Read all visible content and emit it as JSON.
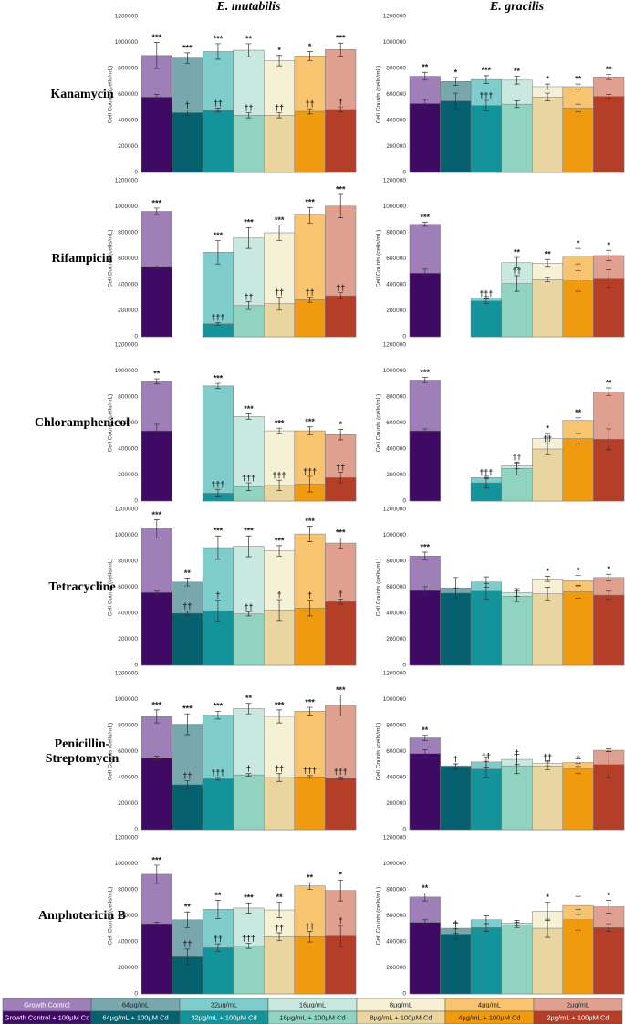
{
  "column_titles": [
    "E. mutabilis",
    "E. gracilis"
  ],
  "row_titles": [
    "Kanamycin",
    "Rifampicin",
    "Chloramphenicol",
    "Tetracycline",
    "Penicillin-Streptomycin",
    "Amphotericin B"
  ],
  "legend": {
    "labels": [
      [
        "Growth Control",
        "64µg/mL",
        "32µg/mL",
        "16µg/mL",
        "8µg/mL",
        "4µg/mL",
        "2µg/mL"
      ],
      [
        "Growth Control + 100µM Cd",
        "64µg/mL + 100µM Cd",
        "32µg/mL + 100µM Cd",
        "16µg/mL + 100µM Cd",
        "8µg/mL + 100µM Cd",
        "4µg/mL + 100µM Cd",
        "2µg/mL + 100µM Cd"
      ]
    ],
    "colors": [
      [
        "#9f7fb8",
        "#78a7ae",
        "#7fcccc",
        "#c9e8df",
        "#f6f0d4",
        "#f9c46f",
        "#dfa090"
      ],
      [
        "#3f0a64",
        "#06606e",
        "#14939a",
        "#8fd3c0",
        "#e8d5a0",
        "#f09a10",
        "#b43e28"
      ]
    ]
  },
  "chart_data": [
    {
      "type": "bar",
      "ylabel": "Cell Counts (cells/mL)",
      "ylim": [
        0,
        1200000
      ],
      "yticks": [
        0,
        200000,
        400000,
        600000,
        800000,
        1000000,
        1200000
      ],
      "series": [
        {
          "values": [
            900000,
            880000,
            930000,
            940000,
            860000,
            895000,
            945000
          ],
          "errors": [
            100000,
            40000,
            60000,
            50000,
            40000,
            35000,
            50000
          ],
          "annotations": [
            "***",
            "***",
            "***",
            "**",
            "*",
            "*",
            "***"
          ]
        },
        {
          "values": [
            580000,
            460000,
            480000,
            440000,
            440000,
            470000,
            485000
          ],
          "errors": [
            20000,
            20000,
            15000,
            20000,
            20000,
            20000,
            20000
          ],
          "annotations": [
            null,
            "†",
            "††",
            "††",
            "††",
            "††",
            "†"
          ]
        }
      ]
    },
    {
      "type": "bar",
      "ylabel": "Cell Counts (cells/mL)",
      "ylim": [
        0,
        1200000
      ],
      "yticks": [
        0,
        200000,
        400000,
        600000,
        800000,
        1000000,
        1200000
      ],
      "series": [
        {
          "values": [
            740000,
            700000,
            715000,
            710000,
            660000,
            660000,
            735000
          ],
          "errors": [
            30000,
            30000,
            30000,
            30000,
            20000,
            20000,
            20000
          ],
          "annotations": [
            "**",
            "*",
            "***",
            "**",
            "*",
            "**",
            "**"
          ]
        },
        {
          "values": [
            530000,
            550000,
            515000,
            525000,
            580000,
            495000,
            585000
          ],
          "errors": [
            30000,
            60000,
            40000,
            25000,
            30000,
            30000,
            15000
          ],
          "annotations": [
            null,
            null,
            "†††",
            null,
            null,
            null,
            null
          ]
        }
      ]
    },
    {
      "type": "bar",
      "ylabel": "Cell Counts (cells/mL)",
      "ylim": [
        0,
        1200000
      ],
      "yticks": [
        0,
        200000,
        400000,
        600000,
        800000,
        1000000,
        1200000
      ],
      "series": [
        {
          "values": [
            965000,
            null,
            650000,
            760000,
            800000,
            935000,
            1005000
          ],
          "errors": [
            25000,
            null,
            90000,
            80000,
            60000,
            60000,
            90000
          ],
          "annotations": [
            "***",
            null,
            "***",
            "***",
            "***",
            "***",
            "***"
          ]
        },
        {
          "values": [
            535000,
            null,
            100000,
            240000,
            255000,
            285000,
            315000
          ],
          "errors": [
            10000,
            null,
            10000,
            30000,
            50000,
            20000,
            25000
          ],
          "annotations": [
            null,
            null,
            "†††",
            "††",
            "††",
            "††",
            "††"
          ]
        }
      ]
    },
    {
      "type": "bar",
      "ylabel": "Cell Counts (cells/mL)",
      "ylim": [
        0,
        1200000
      ],
      "yticks": [
        0,
        200000,
        400000,
        600000,
        800000,
        1000000,
        1200000
      ],
      "series": [
        {
          "values": [
            865000,
            null,
            300000,
            570000,
            565000,
            620000,
            625000
          ],
          "errors": [
            15000,
            null,
            10000,
            40000,
            30000,
            60000,
            40000
          ],
          "annotations": [
            "***",
            null,
            null,
            "**",
            "**",
            "*",
            "*"
          ]
        },
        {
          "values": [
            490000,
            null,
            275000,
            410000,
            440000,
            430000,
            445000
          ],
          "errors": [
            30000,
            null,
            20000,
            60000,
            15000,
            80000,
            70000
          ],
          "annotations": [
            null,
            null,
            "†††",
            "††",
            null,
            null,
            null
          ]
        }
      ]
    },
    {
      "type": "bar",
      "ylabel": "Cell Counts (cells/mL)",
      "ylim": [
        0,
        1200000
      ],
      "yticks": [
        0,
        200000,
        400000,
        600000,
        800000,
        1000000,
        1200000
      ],
      "series": [
        {
          "values": [
            920000,
            null,
            885000,
            650000,
            540000,
            540000,
            510000
          ],
          "errors": [
            20000,
            null,
            20000,
            20000,
            20000,
            30000,
            40000
          ],
          "annotations": [
            "**",
            null,
            "***",
            "***",
            "***",
            "***",
            "*"
          ]
        },
        {
          "values": [
            540000,
            null,
            60000,
            110000,
            120000,
            130000,
            180000
          ],
          "errors": [
            50000,
            null,
            30000,
            30000,
            40000,
            60000,
            40000
          ],
          "annotations": [
            null,
            null,
            "†††",
            "†††",
            "†††",
            "†††",
            "††"
          ]
        }
      ]
    },
    {
      "type": "bar",
      "ylabel": "Cell Counts (cells/mL)",
      "ylim": [
        0,
        1200000
      ],
      "yticks": [
        0,
        200000,
        400000,
        600000,
        800000,
        1000000,
        1200000
      ],
      "series": [
        {
          "values": [
            930000,
            null,
            180000,
            270000,
            480000,
            620000,
            840000
          ],
          "errors": [
            20000,
            null,
            10000,
            20000,
            40000,
            20000,
            30000
          ],
          "annotations": [
            "***",
            null,
            null,
            null,
            "*",
            "**",
            "**"
          ]
        },
        {
          "values": [
            540000,
            null,
            140000,
            250000,
            400000,
            480000,
            475000
          ],
          "errors": [
            15000,
            null,
            40000,
            50000,
            40000,
            40000,
            80000
          ],
          "annotations": [
            null,
            null,
            "†††",
            "††",
            "††",
            null,
            null
          ]
        }
      ]
    },
    {
      "type": "bar",
      "ylabel": "Cell Counts (cells/mL)",
      "ylim": [
        0,
        1200000
      ],
      "yticks": [
        0,
        200000,
        400000,
        600000,
        800000,
        1000000,
        1200000
      ],
      "series": [
        {
          "values": [
            1050000,
            640000,
            905000,
            915000,
            880000,
            1010000,
            940000
          ],
          "errors": [
            70000,
            30000,
            90000,
            80000,
            40000,
            60000,
            40000
          ],
          "annotations": [
            "***",
            "**",
            "***",
            "***",
            "***",
            "***",
            "***"
          ]
        },
        {
          "values": [
            560000,
            400000,
            420000,
            395000,
            425000,
            440000,
            490000
          ],
          "errors": [
            10000,
            15000,
            80000,
            15000,
            80000,
            60000,
            20000
          ],
          "annotations": [
            null,
            "††",
            "†",
            "††",
            "†",
            "†",
            "†"
          ]
        }
      ]
    },
    {
      "type": "bar",
      "ylabel": "Cell Counts (cells/mL)",
      "ylim": [
        0,
        1200000
      ],
      "yticks": [
        0,
        200000,
        400000,
        600000,
        800000,
        1000000,
        1200000
      ],
      "series": [
        {
          "values": [
            840000,
            595000,
            640000,
            560000,
            665000,
            650000,
            675000
          ],
          "errors": [
            30000,
            80000,
            40000,
            30000,
            20000,
            40000,
            25000
          ],
          "annotations": [
            "***",
            null,
            null,
            null,
            "*",
            "*",
            "*"
          ]
        },
        {
          "values": [
            575000,
            555000,
            570000,
            530000,
            550000,
            565000,
            540000
          ],
          "errors": [
            30000,
            40000,
            60000,
            40000,
            50000,
            50000,
            30000
          ],
          "annotations": [
            null,
            null,
            null,
            null,
            null,
            null,
            null
          ]
        }
      ]
    },
    {
      "type": "bar",
      "ylabel": "Cell Counts (cells/mL)",
      "ylim": [
        0,
        1200000
      ],
      "yticks": [
        0,
        200000,
        400000,
        600000,
        800000,
        1000000,
        1200000
      ],
      "series": [
        {
          "values": [
            870000,
            810000,
            880000,
            930000,
            870000,
            910000,
            955000
          ],
          "errors": [
            50000,
            80000,
            30000,
            40000,
            50000,
            30000,
            80000
          ],
          "annotations": [
            "***",
            "***",
            "***",
            "**",
            "***",
            "***",
            "***"
          ]
        },
        {
          "values": [
            550000,
            345000,
            390000,
            420000,
            400000,
            405000,
            395000
          ],
          "errors": [
            15000,
            30000,
            10000,
            10000,
            30000,
            10000,
            10000
          ],
          "annotations": [
            null,
            "††",
            "†††",
            "†",
            "††",
            "†††",
            "†††"
          ]
        }
      ]
    },
    {
      "type": "bar",
      "ylabel": "Cell Counts (cells/mL)",
      "ylim": [
        0,
        1200000
      ],
      "yticks": [
        0,
        200000,
        400000,
        600000,
        800000,
        1000000,
        1200000
      ],
      "series": [
        {
          "values": [
            705000,
            490000,
            520000,
            540000,
            510000,
            515000,
            610000
          ],
          "errors": [
            20000,
            15000,
            40000,
            40000,
            20000,
            30000,
            10000
          ],
          "annotations": [
            "**",
            null,
            null,
            null,
            null,
            null,
            null
          ]
        },
        {
          "values": [
            585000,
            485000,
            465000,
            490000,
            490000,
            470000,
            500000
          ],
          "errors": [
            30000,
            20000,
            60000,
            60000,
            30000,
            40000,
            100000
          ],
          "annotations": [
            null,
            "†",
            "††",
            "†",
            "††",
            "†",
            null
          ]
        }
      ]
    },
    {
      "type": "bar",
      "ylabel": "Cell Counts (cells/mL)",
      "ylim": [
        0,
        1200000
      ],
      "yticks": [
        0,
        200000,
        400000,
        600000,
        800000,
        1000000,
        1200000
      ],
      "series": [
        {
          "values": [
            920000,
            570000,
            650000,
            660000,
            645000,
            830000,
            795000
          ],
          "errors": [
            70000,
            60000,
            70000,
            40000,
            60000,
            25000,
            80000
          ],
          "annotations": [
            "***",
            "**",
            "**",
            "***",
            "**",
            "**",
            "*"
          ]
        },
        {
          "values": [
            540000,
            285000,
            355000,
            370000,
            440000,
            440000,
            445000
          ],
          "errors": [
            10000,
            60000,
            30000,
            20000,
            30000,
            40000,
            80000
          ],
          "annotations": [
            null,
            "††",
            "††",
            "†††",
            "††",
            "††",
            "†"
          ]
        }
      ]
    },
    {
      "type": "bar",
      "ylabel": "Cell Counts (cells/mL)",
      "ylim": [
        0,
        1200000
      ],
      "yticks": [
        0,
        200000,
        400000,
        600000,
        800000,
        1000000,
        1200000
      ],
      "series": [
        {
          "values": [
            745000,
            505000,
            570000,
            545000,
            635000,
            680000,
            670000
          ],
          "errors": [
            30000,
            40000,
            30000,
            20000,
            70000,
            70000,
            50000
          ],
          "annotations": [
            "**",
            null,
            null,
            null,
            "*",
            null,
            "*"
          ]
        },
        {
          "values": [
            550000,
            460000,
            510000,
            530000,
            505000,
            570000,
            510000
          ],
          "errors": [
            20000,
            40000,
            30000,
            20000,
            70000,
            80000,
            30000
          ],
          "annotations": [
            null,
            "†",
            null,
            null,
            null,
            null,
            null
          ]
        }
      ]
    }
  ]
}
